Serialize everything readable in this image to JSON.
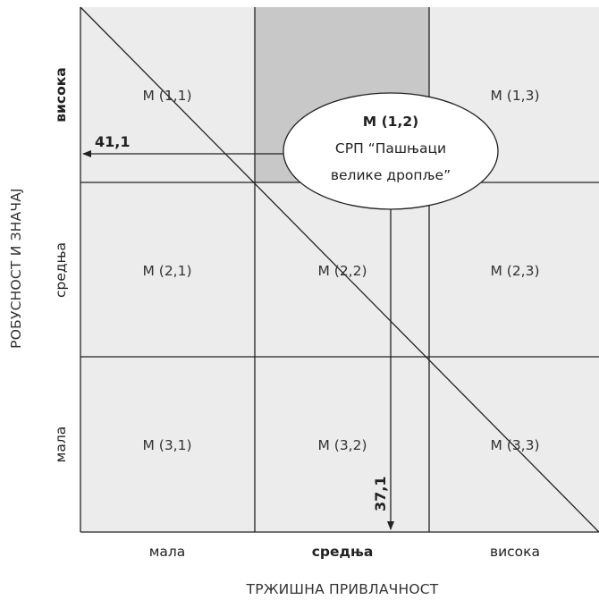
{
  "colors": {
    "cell_fill": "#ececec",
    "highlight_fill": "#c8c8c8",
    "grid_line": "#222222",
    "arrow": "#222222"
  },
  "cells": {
    "r1c1": "M (1,1)",
    "r1c3": "M (1,3)",
    "r2c1": "M (2,1)",
    "r2c2": "M (2,2)",
    "r2c3": "M (2,3)",
    "r3c1": "M (3,1)",
    "r3c2": "M (3,2)",
    "r3c3": "M (3,3)"
  },
  "callout": {
    "title": "M (1,2)",
    "line1": "СРП “Пашњаци",
    "line2": "велике дропље”"
  },
  "y_axis": {
    "title": "РОБУСНОСТ И ЗНАЧАЈ",
    "ticks": [
      "висока",
      "средња",
      "мала"
    ],
    "bold_tick": "висока"
  },
  "x_axis": {
    "title": "ТРЖИШНА ПРИВЛАЧНОСТ",
    "ticks": [
      "мала",
      "средња",
      "висока"
    ],
    "bold_tick": "средња"
  },
  "markers": {
    "y_value": "41,1",
    "x_value": "37,1"
  }
}
